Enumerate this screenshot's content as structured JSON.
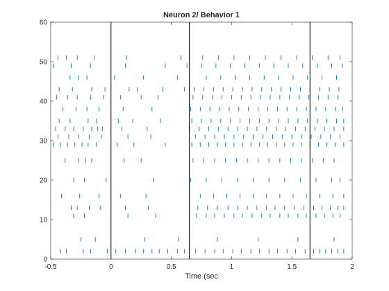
{
  "chart_data": {
    "type": "raster",
    "title": "Neuron 2/ Behavior 1",
    "xlabel": "Time (sec",
    "ylabel": "",
    "xlim": [
      -0.5,
      2
    ],
    "ylim": [
      0,
      60
    ],
    "xticks": [
      -0.5,
      0,
      0.5,
      1,
      1.5,
      2
    ],
    "xtick_labels": [
      "-0.5",
      "0",
      "0.5",
      "1",
      "1.5",
      "2"
    ],
    "yticks": [
      0,
      10,
      20,
      30,
      40,
      50,
      60
    ],
    "ytick_labels": [
      "0",
      "10",
      "20",
      "30",
      "40",
      "50",
      "60"
    ],
    "event_lines_x": [
      0,
      0.65,
      1.65
    ],
    "spike_color": "#0072bd",
    "event_line_color": "#000000",
    "grid": false,
    "trials": [
      {
        "y": 2,
        "times": [
          -0.42,
          -0.37,
          -0.23,
          -0.17,
          -0.03,
          0.04,
          0.12,
          0.2,
          0.27,
          0.34,
          0.4,
          0.47,
          0.55,
          0.61,
          0.7,
          0.78,
          0.86,
          0.93,
          1.01,
          1.08,
          1.16,
          1.23,
          1.31,
          1.38,
          1.46,
          1.53,
          1.61,
          1.68,
          1.73,
          1.78,
          1.83,
          1.88,
          1.93
        ]
      },
      {
        "y": 5,
        "times": [
          -0.25,
          -0.13,
          0.28,
          0.56,
          0.88,
          1.22,
          1.55,
          1.85
        ]
      },
      {
        "y": 11,
        "times": [
          -0.31,
          -0.22,
          0.14,
          0.37,
          0.71,
          0.79,
          0.86,
          0.94,
          1.02,
          1.09,
          1.17,
          1.25,
          1.32,
          1.4,
          1.47,
          1.55,
          1.62,
          1.7,
          1.77,
          1.84,
          1.9
        ]
      },
      {
        "y": 13,
        "times": [
          -0.33,
          -0.28,
          -0.18,
          -0.09,
          0.12,
          0.31,
          0.72,
          0.8,
          0.88,
          0.97,
          1.05,
          1.13,
          1.21,
          1.29,
          1.36,
          1.44,
          1.52,
          1.6,
          1.68,
          1.75,
          1.82,
          1.88,
          1.93
        ]
      },
      {
        "y": 16,
        "times": [
          -0.41,
          -0.26,
          -0.1,
          0.08,
          0.29,
          0.74,
          0.85,
          0.96,
          1.07,
          1.18,
          1.29,
          1.4,
          1.51,
          1.62,
          1.73,
          1.84,
          1.93
        ]
      },
      {
        "y": 20,
        "times": [
          -0.31,
          -0.22,
          -0.04,
          0.35,
          0.66,
          0.79,
          0.92,
          1.05,
          1.18,
          1.31,
          1.44,
          1.57,
          1.7,
          1.83,
          1.9
        ]
      },
      {
        "y": 25,
        "times": [
          -0.38,
          -0.27,
          -0.21,
          -0.16,
          0.11,
          0.25,
          0.68,
          0.77,
          0.86,
          0.95,
          1.04,
          1.13,
          1.22,
          1.31,
          1.4,
          1.49,
          1.58,
          1.67,
          1.76,
          1.85
        ]
      },
      {
        "y": 29,
        "times": [
          -0.48,
          -0.42,
          -0.36,
          -0.3,
          -0.24,
          -0.19,
          -0.12,
          0.05,
          0.19,
          0.45,
          0.67,
          0.74,
          0.81,
          0.88,
          0.95,
          1.02,
          1.09,
          1.16,
          1.23,
          1.3,
          1.37,
          1.44,
          1.51,
          1.58,
          1.65,
          1.72,
          1.79,
          1.86,
          1.93
        ]
      },
      {
        "y": 31,
        "times": [
          -0.44,
          -0.35,
          -0.27,
          -0.18,
          -0.08,
          0.14,
          0.33,
          0.7,
          0.78,
          0.86,
          0.94,
          1.02,
          1.1,
          1.18,
          1.26,
          1.34,
          1.42,
          1.5,
          1.58,
          1.66,
          1.74,
          1.82,
          1.9
        ]
      },
      {
        "y": 33,
        "times": [
          -0.46,
          -0.38,
          -0.31,
          -0.23,
          -0.16,
          -0.11,
          -0.07,
          0.09,
          0.3,
          0.65,
          0.73,
          0.81,
          0.89,
          0.97,
          1.05,
          1.13,
          1.21,
          1.29,
          1.37,
          1.45,
          1.53,
          1.61,
          1.69,
          1.77,
          1.85,
          1.93
        ]
      },
      {
        "y": 35,
        "times": [
          -0.43,
          -0.34,
          -0.19,
          -0.12,
          0.06,
          0.18,
          0.41,
          0.67,
          0.75,
          0.83,
          0.91,
          0.99,
          1.07,
          1.15,
          1.23,
          1.31,
          1.39,
          1.47,
          1.55,
          1.63,
          1.71,
          1.79,
          1.87,
          1.93
        ]
      },
      {
        "y": 38,
        "times": [
          -0.4,
          -0.29,
          -0.2,
          -0.1,
          0.1,
          0.34,
          0.66,
          0.74,
          0.82,
          0.9,
          0.98,
          1.06,
          1.14,
          1.22,
          1.3,
          1.38,
          1.46,
          1.54,
          1.62,
          1.7,
          1.78,
          1.86,
          1.92
        ]
      },
      {
        "y": 41,
        "times": [
          -0.45,
          -0.36,
          -0.28,
          -0.17,
          -0.06,
          0.08,
          0.25,
          0.39,
          0.68,
          0.76,
          0.84,
          0.92,
          1.0,
          1.08,
          1.16,
          1.24,
          1.32,
          1.4,
          1.48,
          1.56,
          1.64,
          1.72,
          1.8,
          1.88
        ]
      },
      {
        "y": 43,
        "times": [
          -0.43,
          -0.32,
          -0.16,
          -0.05,
          0.15,
          0.22,
          0.43,
          0.61,
          0.69,
          0.77,
          0.85,
          0.93,
          1.01,
          1.09,
          1.17,
          1.25,
          1.33,
          1.41,
          1.49,
          1.57,
          1.65,
          1.73,
          1.81,
          1.89
        ]
      },
      {
        "y": 46,
        "times": [
          -0.34,
          -0.27,
          -0.2,
          0.03,
          0.27,
          0.55,
          0.79,
          0.91,
          1.03,
          1.15,
          1.27,
          1.39,
          1.51,
          1.63,
          1.75,
          1.87
        ]
      },
      {
        "y": 49,
        "times": [
          -0.48,
          -0.33,
          -0.17,
          0.12,
          0.45,
          0.63,
          0.75,
          0.87,
          0.99,
          1.11,
          1.23,
          1.35,
          1.47,
          1.59,
          1.71,
          1.83,
          1.92
        ]
      },
      {
        "y": 51,
        "times": [
          -0.44,
          -0.37,
          -0.28,
          -0.14,
          0.13,
          0.58,
          0.76,
          0.89,
          1.02,
          1.15,
          1.28,
          1.41,
          1.54,
          1.67,
          1.8,
          1.9
        ]
      }
    ]
  }
}
